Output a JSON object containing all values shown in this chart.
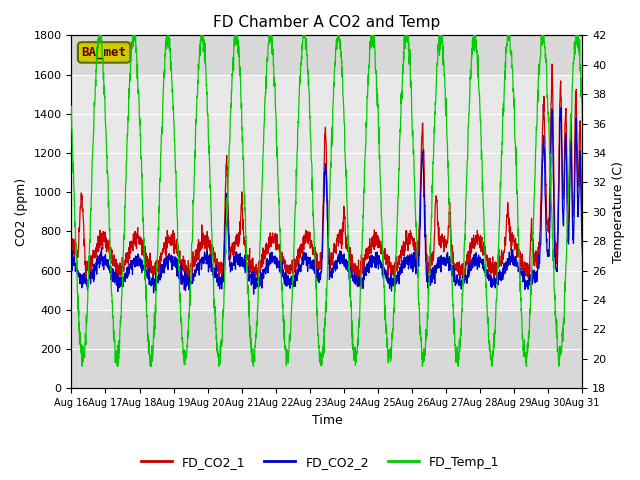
{
  "title": "FD Chamber A CO2 and Temp",
  "xlabel": "Time",
  "ylabel_left": "CO2 (ppm)",
  "ylabel_right": "Temperature (C)",
  "ylim_left": [
    0,
    1800
  ],
  "ylim_right": [
    18,
    42
  ],
  "yticks_left": [
    0,
    200,
    400,
    600,
    800,
    1000,
    1200,
    1400,
    1600,
    1800
  ],
  "yticks_right": [
    18,
    20,
    22,
    24,
    26,
    28,
    30,
    32,
    34,
    36,
    38,
    40,
    42
  ],
  "xtick_labels": [
    "Aug 16",
    "Aug 17",
    "Aug 18",
    "Aug 19",
    "Aug 20",
    "Aug 21",
    "Aug 22",
    "Aug 23",
    "Aug 24",
    "Aug 25",
    "Aug 26",
    "Aug 27",
    "Aug 28",
    "Aug 29",
    "Aug 30",
    "Aug 31"
  ],
  "color_co2_1": "#cc0000",
  "color_co2_2": "#0000cc",
  "color_temp": "#00cc00",
  "legend_label_1": "FD_CO2_1",
  "legend_label_2": "FD_CO2_2",
  "legend_label_3": "FD_Temp_1",
  "tag_text": "BA_met",
  "tag_facecolor": "#cccc00",
  "tag_edgecolor": "#666600",
  "background_color": "#ffffff",
  "axes_bg_color": "#d8d8d8",
  "band_color": "#e8e8e8",
  "grid_color": "#ffffff",
  "n_days": 15,
  "points_per_day": 144,
  "seed": 7
}
